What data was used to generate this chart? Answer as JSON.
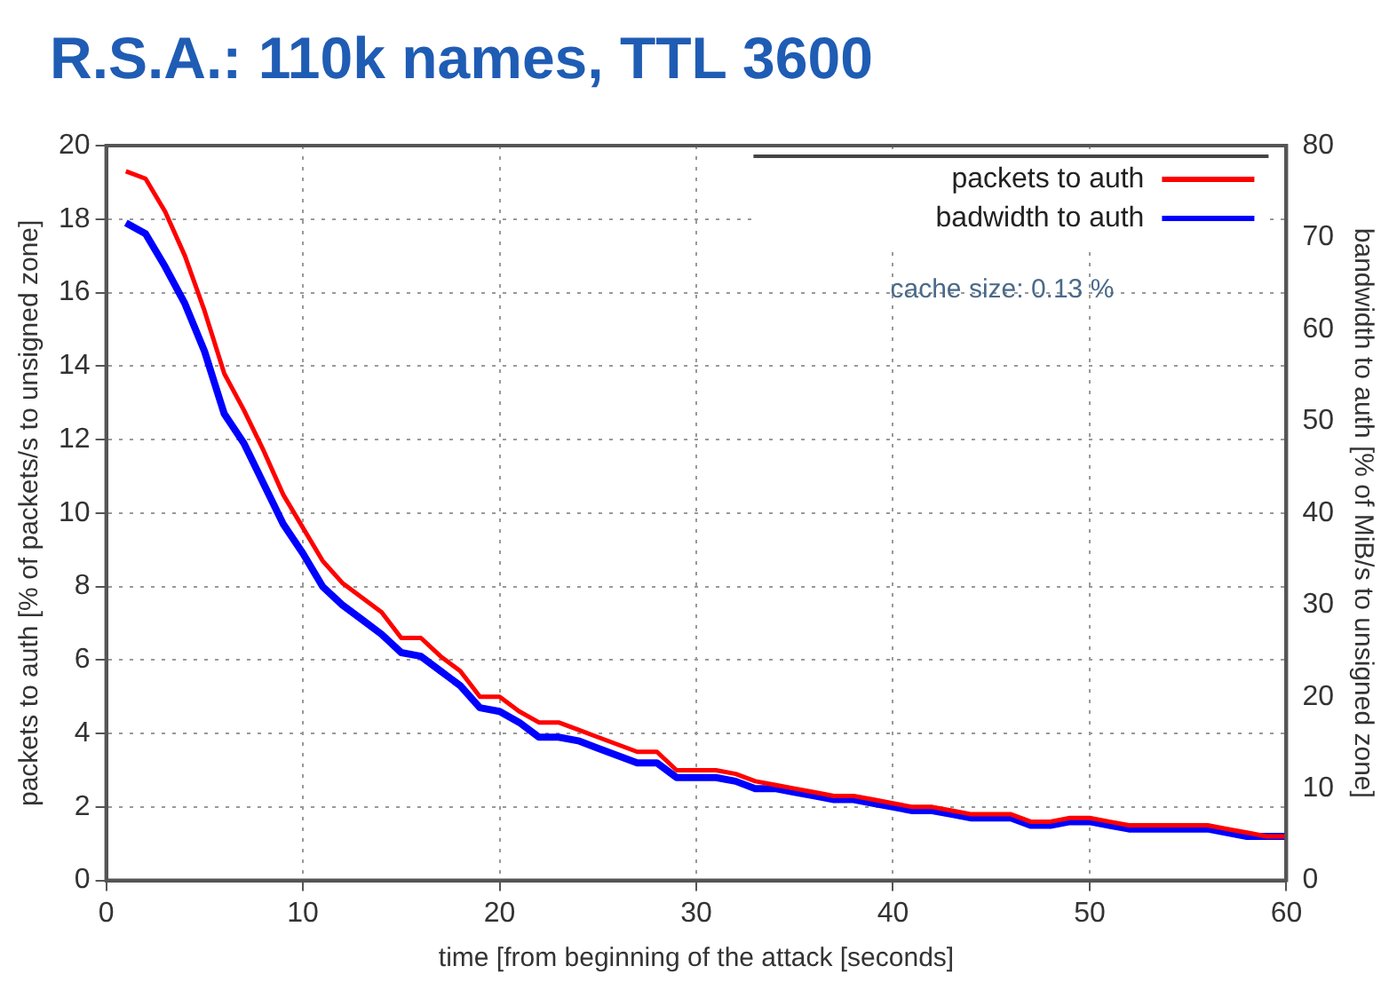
{
  "chart_data": {
    "type": "line",
    "title": "R.S.A.: 110k names, TTL 3600",
    "xlabel": "time [from beginning of the attack [seconds]",
    "ylabel": "packets to auth [% of packets/s to unsigned zone]",
    "y2label": "bandwidth to auth [% of MiB/s to unsigned zone]",
    "x": [
      1,
      2,
      3,
      4,
      5,
      6,
      7,
      8,
      9,
      10,
      11,
      12,
      13,
      14,
      15,
      16,
      17,
      18,
      19,
      20,
      21,
      22,
      23,
      24,
      25,
      26,
      27,
      28,
      29,
      30,
      31,
      32,
      33,
      34,
      35,
      36,
      37,
      38,
      39,
      40,
      41,
      42,
      43,
      44,
      45,
      46,
      47,
      48,
      49,
      50,
      51,
      52,
      53,
      54,
      55,
      56,
      57,
      58,
      59,
      60
    ],
    "series": [
      {
        "name": "packets to auth",
        "color": "#ff0000",
        "values": [
          19.3,
          19.1,
          18.2,
          17.0,
          15.5,
          13.8,
          12.8,
          11.7,
          10.5,
          9.6,
          8.7,
          8.1,
          7.7,
          7.3,
          6.6,
          6.6,
          6.1,
          5.7,
          5.0,
          5.0,
          4.6,
          4.3,
          4.3,
          4.1,
          3.9,
          3.7,
          3.5,
          3.5,
          3.0,
          3.0,
          3.0,
          2.9,
          2.7,
          2.6,
          2.5,
          2.4,
          2.3,
          2.3,
          2.2,
          2.1,
          2.0,
          2.0,
          1.9,
          1.8,
          1.8,
          1.8,
          1.6,
          1.6,
          1.7,
          1.7,
          1.6,
          1.5,
          1.5,
          1.5,
          1.5,
          1.5,
          1.4,
          1.3,
          1.2,
          1.2
        ]
      },
      {
        "name": "badwidth to auth",
        "color": "#0000ff",
        "axis": "y2",
        "values": [
          71.6,
          70.4,
          66.8,
          62.8,
          57.6,
          50.8,
          47.6,
          43.2,
          38.8,
          35.6,
          32,
          30,
          28.4,
          26.8,
          24.8,
          24.4,
          22.8,
          21.2,
          18.8,
          18.4,
          17.2,
          15.6,
          15.6,
          15.2,
          14.4,
          13.6,
          12.8,
          12.8,
          11.2,
          11.2,
          11.2,
          10.8,
          10,
          10,
          9.6,
          9.2,
          8.8,
          8.8,
          8.4,
          8,
          7.6,
          7.6,
          7.2,
          6.8,
          6.8,
          6.8,
          6,
          6,
          6.4,
          6.4,
          6,
          5.6,
          5.6,
          5.6,
          5.6,
          5.6,
          5.2,
          4.8,
          4.8,
          4.8
        ]
      }
    ],
    "xlim": [
      0,
      60
    ],
    "xticks": [
      0,
      10,
      20,
      30,
      40,
      50,
      60
    ],
    "ylim": [
      0,
      20
    ],
    "yticks": [
      0,
      2,
      4,
      6,
      8,
      10,
      12,
      14,
      16,
      18,
      20
    ],
    "y2lim": [
      0,
      80
    ],
    "y2ticks": [
      0,
      10,
      20,
      30,
      40,
      50,
      60,
      70,
      80
    ],
    "annotations": [
      "cache size: 0.13 %"
    ],
    "grid": true,
    "legend": "top right",
    "marker": "none",
    "line_style": "solid"
  }
}
